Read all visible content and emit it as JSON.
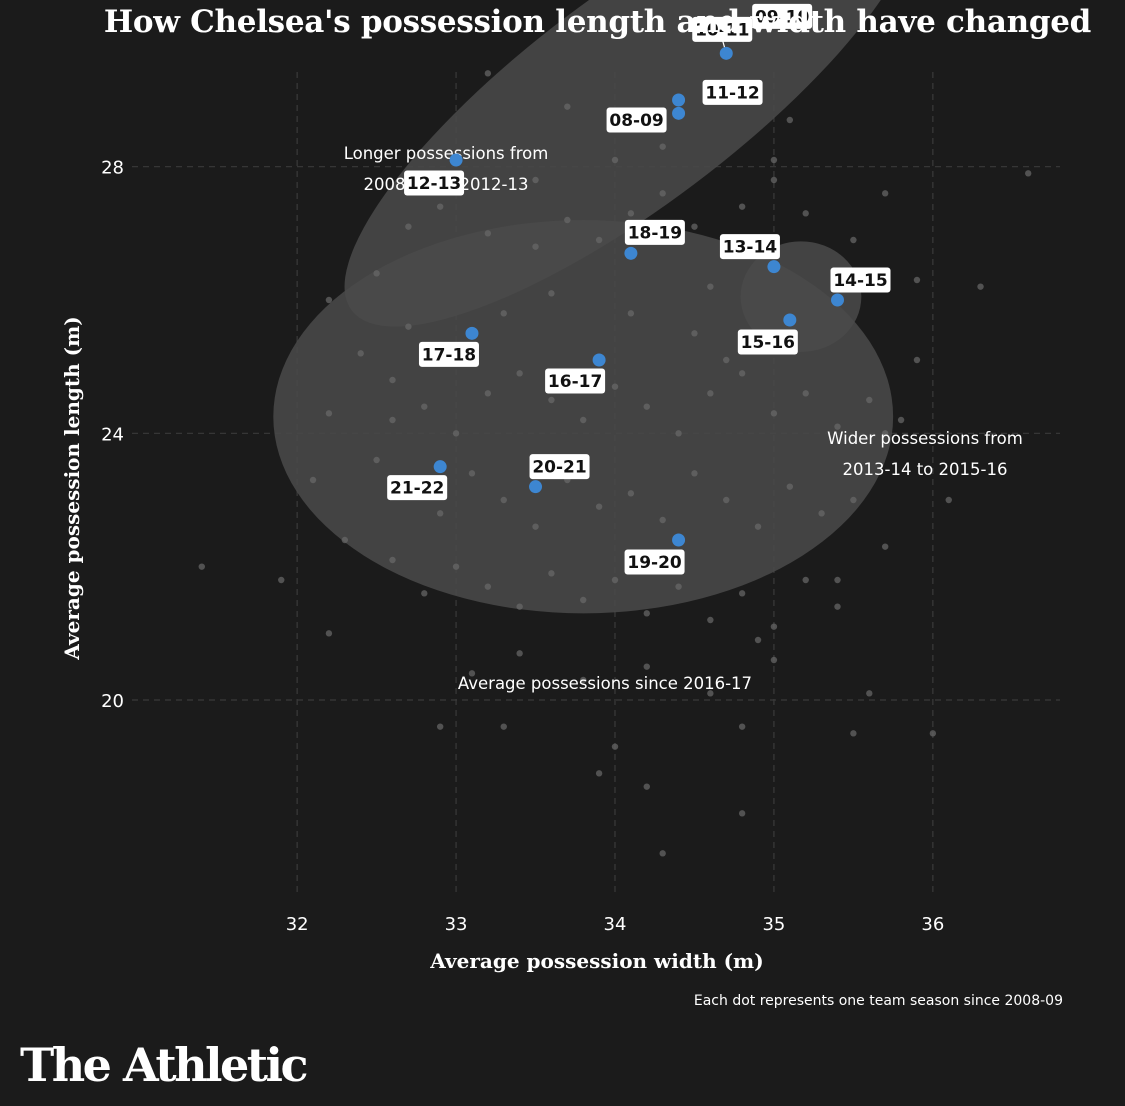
{
  "chart_data": {
    "type": "scatter",
    "title": "How Chelsea's possession length and width have changed",
    "xlabel": "Average possession width (m)",
    "ylabel": "Average possession length (m)",
    "xlim": [
      31.2,
      36.8
    ],
    "ylim": [
      17,
      29.6
    ],
    "xticks": [
      "32",
      "33",
      "34",
      "35",
      "36"
    ],
    "yticks": [
      "20",
      "24",
      "28"
    ],
    "xtick_values": [
      32,
      33,
      34,
      35,
      36
    ],
    "ytick_values": [
      20,
      24,
      28
    ],
    "grid": true,
    "highlight_color": "#3d86d1",
    "background_dot_color": "#6a6a6a",
    "chelsea_seasons": [
      {
        "label": "08-09",
        "x": 34.4,
        "y": 29.0
      },
      {
        "label": "09-10",
        "x": 34.8,
        "y": 30.0
      },
      {
        "label": "10-11",
        "x": 34.7,
        "y": 29.7
      },
      {
        "label": "11-12",
        "x": 34.4,
        "y": 28.8
      },
      {
        "label": "12-13",
        "x": 33.0,
        "y": 28.1
      },
      {
        "label": "13-14",
        "x": 35.0,
        "y": 26.5
      },
      {
        "label": "14-15",
        "x": 35.4,
        "y": 26.0
      },
      {
        "label": "15-16",
        "x": 35.1,
        "y": 25.7
      },
      {
        "label": "16-17",
        "x": 33.9,
        "y": 25.1
      },
      {
        "label": "17-18",
        "x": 33.1,
        "y": 25.5
      },
      {
        "label": "18-19",
        "x": 34.1,
        "y": 26.7
      },
      {
        "label": "19-20",
        "x": 34.4,
        "y": 22.4
      },
      {
        "label": "20-21",
        "x": 33.5,
        "y": 23.2
      },
      {
        "label": "21-22",
        "x": 32.9,
        "y": 23.5
      }
    ],
    "other_team_seasons": [
      [
        32.5,
        26.4
      ],
      [
        32.7,
        25.6
      ],
      [
        32.9,
        27.4
      ],
      [
        33.2,
        27.0
      ],
      [
        33.5,
        26.8
      ],
      [
        33.7,
        27.2
      ],
      [
        33.9,
        26.9
      ],
      [
        34.1,
        27.3
      ],
      [
        34.3,
        27.6
      ],
      [
        34.5,
        27.1
      ],
      [
        34.6,
        26.2
      ],
      [
        34.8,
        27.4
      ],
      [
        35.0,
        27.8
      ],
      [
        35.2,
        27.3
      ],
      [
        35.5,
        26.9
      ],
      [
        35.7,
        27.6
      ],
      [
        35.9,
        26.3
      ],
      [
        32.4,
        25.2
      ],
      [
        32.6,
        24.8
      ],
      [
        32.8,
        24.4
      ],
      [
        33.0,
        24.0
      ],
      [
        33.2,
        24.6
      ],
      [
        33.4,
        24.9
      ],
      [
        33.6,
        24.5
      ],
      [
        33.8,
        24.2
      ],
      [
        34.0,
        24.7
      ],
      [
        34.2,
        24.4
      ],
      [
        34.4,
        24.0
      ],
      [
        34.6,
        24.6
      ],
      [
        34.8,
        24.9
      ],
      [
        35.0,
        24.3
      ],
      [
        35.2,
        24.6
      ],
      [
        35.4,
        24.1
      ],
      [
        35.6,
        24.5
      ],
      [
        35.8,
        24.2
      ],
      [
        32.5,
        23.6
      ],
      [
        32.7,
        23.2
      ],
      [
        32.9,
        22.8
      ],
      [
        33.1,
        23.4
      ],
      [
        33.3,
        23.0
      ],
      [
        33.5,
        22.6
      ],
      [
        33.7,
        23.3
      ],
      [
        33.9,
        22.9
      ],
      [
        34.1,
        23.1
      ],
      [
        34.3,
        22.7
      ],
      [
        34.5,
        23.4
      ],
      [
        34.7,
        23.0
      ],
      [
        34.9,
        22.6
      ],
      [
        35.1,
        23.2
      ],
      [
        35.3,
        22.8
      ],
      [
        35.5,
        23.0
      ],
      [
        32.3,
        22.4
      ],
      [
        32.6,
        22.1
      ],
      [
        32.8,
        21.6
      ],
      [
        33.0,
        22.0
      ],
      [
        33.2,
        21.7
      ],
      [
        33.4,
        21.4
      ],
      [
        33.6,
        21.9
      ],
      [
        33.8,
        21.5
      ],
      [
        34.0,
        21.8
      ],
      [
        34.2,
        21.3
      ],
      [
        34.4,
        21.7
      ],
      [
        34.6,
        21.2
      ],
      [
        34.8,
        21.6
      ],
      [
        35.0,
        21.1
      ],
      [
        35.2,
        21.8
      ],
      [
        35.4,
        21.4
      ],
      [
        31.9,
        21.8
      ],
      [
        32.2,
        21.0
      ],
      [
        33.1,
        20.4
      ],
      [
        33.4,
        20.7
      ],
      [
        33.8,
        20.3
      ],
      [
        34.2,
        20.5
      ],
      [
        34.6,
        20.1
      ],
      [
        35.0,
        20.6
      ],
      [
        35.6,
        20.1
      ],
      [
        33.3,
        19.6
      ],
      [
        34.0,
        19.3
      ],
      [
        34.8,
        19.6
      ],
      [
        35.5,
        19.5
      ],
      [
        32.9,
        19.6
      ],
      [
        33.9,
        18.9
      ],
      [
        34.2,
        18.7
      ],
      [
        34.8,
        18.3
      ],
      [
        34.3,
        17.7
      ],
      [
        36.0,
        19.5
      ],
      [
        31.4,
        22.0
      ],
      [
        32.1,
        23.3
      ],
      [
        36.3,
        26.2
      ],
      [
        36.6,
        27.9
      ],
      [
        35.9,
        25.1
      ],
      [
        35.7,
        24.0
      ],
      [
        33.6,
        26.1
      ],
      [
        34.1,
        25.8
      ],
      [
        34.5,
        25.5
      ],
      [
        33.3,
        25.8
      ],
      [
        32.6,
        24.2
      ],
      [
        34.7,
        25.1
      ],
      [
        32.2,
        24.3
      ],
      [
        32.2,
        26.0
      ],
      [
        34.0,
        28.1
      ],
      [
        35.1,
        28.7
      ],
      [
        33.7,
        28.9
      ],
      [
        33.2,
        29.4
      ],
      [
        34.3,
        28.3
      ],
      [
        33.5,
        27.8
      ],
      [
        35.0,
        28.1
      ],
      [
        32.7,
        27.1
      ],
      [
        36.1,
        23.0
      ],
      [
        35.7,
        22.3
      ],
      [
        35.4,
        21.8
      ],
      [
        34.9,
        20.9
      ]
    ],
    "ellipses": [
      {
        "name": "longer-possessions-region",
        "cx": 34.1,
        "cy": 29.0,
        "rx": 2.2,
        "ry": 0.85,
        "angle_deg": -37
      },
      {
        "name": "average-possessions-region",
        "cx": 33.8,
        "cy": 24.25,
        "rx": 1.95,
        "ry": 2.95,
        "angle_deg": 0
      },
      {
        "name": "wider-possessions-region",
        "cx": 35.17,
        "cy": 26.05,
        "rx": 0.38,
        "ry": 0.83,
        "angle_deg": 0
      }
    ],
    "annotations": [
      {
        "lines": [
          "Longer possessions from",
          "2008-09 to 2012-13"
        ]
      },
      {
        "lines": [
          "Average possessions since 2016-17"
        ]
      },
      {
        "lines": [
          "Wider possessions from",
          "2013-14 to 2015-16"
        ]
      }
    ]
  },
  "footnote": "Each dot represents one team season since 2008-09",
  "brand": "The Athletic"
}
